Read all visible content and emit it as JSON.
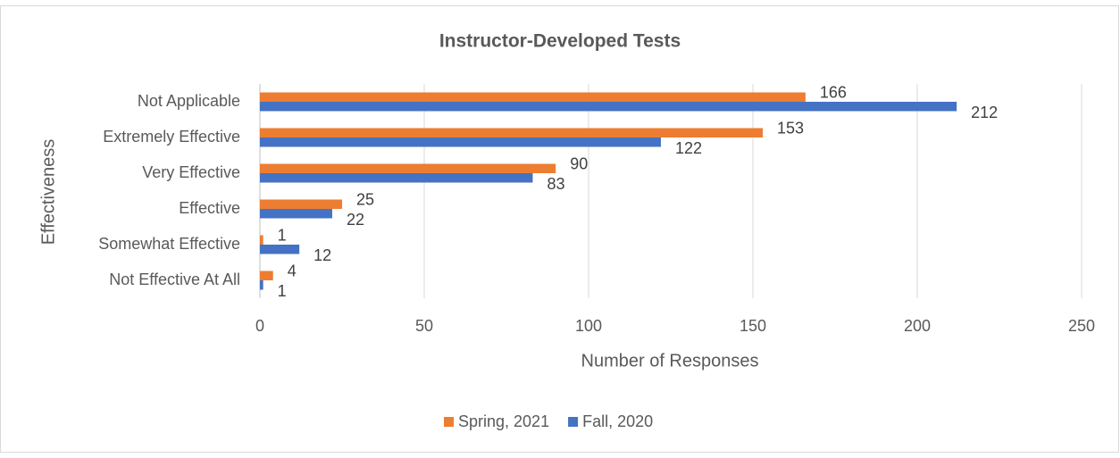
{
  "chart_data": {
    "type": "hbar",
    "title": "Instructor-Developed Tests",
    "categories": [
      "Not Applicable",
      "Extremely Effective",
      "Very Effective",
      "Effective",
      "Somewhat Effective",
      "Not Effective At All"
    ],
    "series": [
      {
        "name": "Spring, 2021",
        "color": "#ED7D31",
        "values": [
          166,
          153,
          90,
          25,
          1,
          4
        ]
      },
      {
        "name": "Fall, 2020",
        "color": "#4472C4",
        "values": [
          212,
          122,
          83,
          22,
          12,
          1
        ]
      }
    ],
    "xlim": [
      0,
      250
    ],
    "xticks": [
      0,
      50,
      100,
      150,
      200,
      250
    ],
    "x_label": "Number of Responses",
    "y_label": "Effectiveness",
    "grid": true,
    "legend": "bottom"
  }
}
